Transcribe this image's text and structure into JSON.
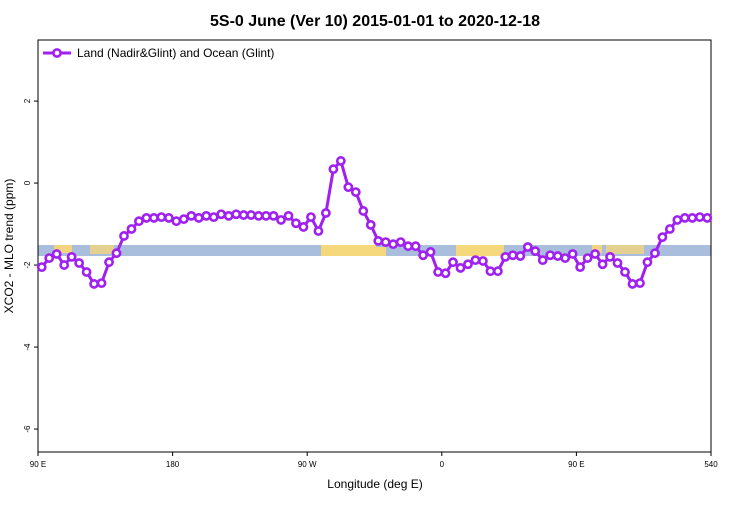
{
  "chart_data": {
    "type": "line",
    "title": "5S-0 June (Ver 10)   2015-01-01 to 2020-12-18",
    "x_label": "Longitude (deg E)",
    "y_label": "XCO2 - MLO trend (ppm)",
    "x": [
      92.5,
      97.5,
      102.5,
      107.5,
      112.5,
      117.5,
      122.5,
      127.5,
      132.5,
      137.5,
      142.5,
      147.5,
      152.5,
      157.5,
      162.5,
      167.5,
      172.5,
      177.5,
      182.5,
      187.5,
      192.5,
      197.5,
      202.5,
      207.5,
      212.5,
      217.5,
      222.5,
      227.5,
      232.5,
      237.5,
      242.5,
      247.5,
      252.5,
      257.5,
      262.5,
      267.5,
      272.5,
      277.5,
      282.5,
      287.5,
      292.5,
      297.5,
      302.5,
      307.5,
      312.5,
      317.5,
      322.5,
      327.5,
      332.5,
      337.5,
      342.5,
      347.5,
      352.5,
      357.5,
      362.5,
      367.5,
      372.5,
      377.5,
      382.5,
      387.5,
      392.5,
      397.5,
      402.5,
      407.5,
      412.5,
      417.5,
      422.5,
      427.5,
      432.5,
      437.5,
      442.5,
      447.5,
      452.5,
      457.5,
      462.5,
      467.5,
      472.5,
      477.5,
      482.5,
      487.5,
      492.5,
      497.5,
      502.5,
      507.5,
      512.5,
      517.5,
      522.5,
      527.5,
      532.5,
      537.5
    ],
    "series": [
      {
        "name": "Land (Nadir&Glint) and Ocean (Glint)",
        "color": "#a020f0",
        "values": [
          -2.05,
          -1.83,
          -1.73,
          -2.0,
          -1.8,
          -1.95,
          -2.17,
          -2.46,
          -2.44,
          -1.93,
          -1.71,
          -1.29,
          -1.12,
          -0.93,
          -0.85,
          -0.85,
          -0.83,
          -0.85,
          -0.93,
          -0.88,
          -0.8,
          -0.85,
          -0.8,
          -0.83,
          -0.76,
          -0.8,
          -0.76,
          -0.78,
          -0.78,
          -0.8,
          -0.8,
          -0.8,
          -0.9,
          -0.8,
          -0.98,
          -1.07,
          -0.83,
          -1.17,
          -0.73,
          0.34,
          0.54,
          -0.1,
          -0.22,
          -0.68,
          -1.02,
          -1.41,
          -1.44,
          -1.49,
          -1.44,
          -1.54,
          -1.54,
          -1.76,
          -1.68,
          -2.17,
          -2.2,
          -1.93,
          -2.07,
          -1.98,
          -1.88,
          -1.9,
          -2.15,
          -2.15,
          -1.8,
          -1.76,
          -1.78,
          -1.56,
          -1.66,
          -1.88,
          -1.76,
          -1.78,
          -1.83,
          -1.73,
          -2.05,
          -1.83,
          -1.73,
          -1.98,
          -1.8,
          -1.95,
          -2.17,
          -2.46,
          -2.44,
          -1.93,
          -1.71,
          -1.32,
          -1.12,
          -0.9,
          -0.85,
          -0.85,
          -0.83,
          -0.85
        ]
      }
    ],
    "xlim": [
      90,
      540
    ],
    "xticks": [
      {
        "value": 90,
        "label": "90 E"
      },
      180,
      {
        "value": 270,
        "label": "90 W"
      },
      {
        "value": 360,
        "label": "0"
      },
      {
        "value": 450,
        "label": "90 E"
      },
      540
    ],
    "ylim": [
      -6.56,
      3.49
    ],
    "yticks": [
      -6,
      -4,
      -2,
      0,
      2
    ],
    "legend": "top-left"
  }
}
